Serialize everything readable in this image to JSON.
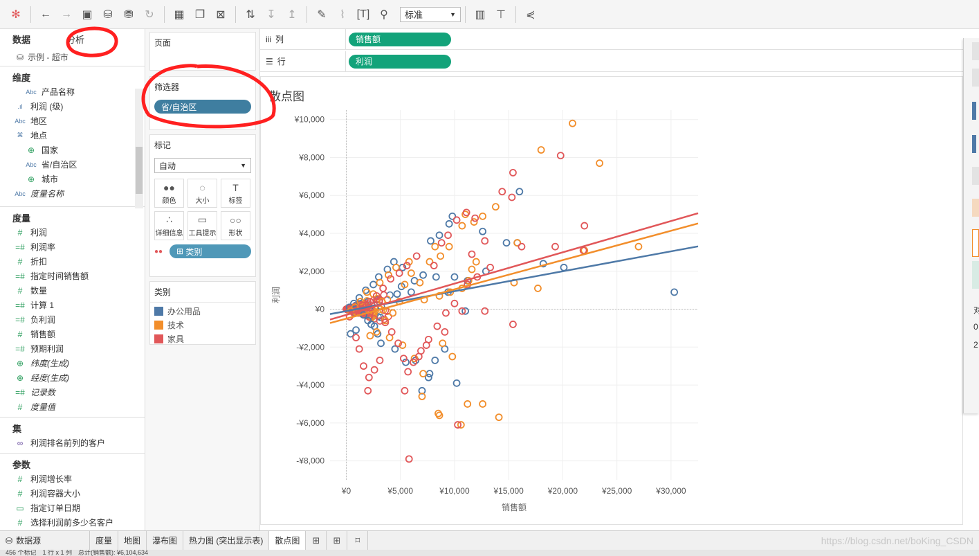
{
  "toolbar": {
    "icons": [
      "tableau-logo-icon",
      "undo-icon",
      "redo-icon",
      "save-icon",
      "new-datasource-icon",
      "pause-icon",
      "refresh-icon",
      "new-worksheet-icon",
      "duplicate-icon",
      "clear-icon",
      "swap-icon",
      "sort-asc-icon",
      "sort-desc-icon",
      "highlight-icon",
      "group-icon",
      "label-icon",
      "pin-icon",
      "show-me-icon",
      "presentation-icon",
      "share-icon"
    ],
    "fit_select": "标准"
  },
  "left_pane": {
    "tabs": [
      "数据",
      "分析"
    ],
    "datasource": "示例 - 超市",
    "dimensions_header": "维度",
    "dimensions": [
      {
        "type": "Abc",
        "label": "产品名称",
        "indent": 2
      },
      {
        "type": "bin",
        "label": "利润 (级)",
        "indent": 1
      },
      {
        "type": "Abc",
        "label": "地区",
        "indent": 1
      },
      {
        "type": "hier",
        "label": "地点",
        "indent": 1
      },
      {
        "type": "geo",
        "label": "国家",
        "indent": 2
      },
      {
        "type": "Abc",
        "label": "省/自治区",
        "indent": 2
      },
      {
        "type": "geo",
        "label": "城市",
        "indent": 2
      },
      {
        "type": "Abc",
        "label": "度量名称",
        "indent": 1,
        "italic": true
      }
    ],
    "measures_header": "度量",
    "measures": [
      {
        "type": "#",
        "label": "利润"
      },
      {
        "type": "=#",
        "label": "利润率"
      },
      {
        "type": "#",
        "label": "折扣"
      },
      {
        "type": "=#",
        "label": "指定时间销售额"
      },
      {
        "type": "#",
        "label": "数量"
      },
      {
        "type": "=#",
        "label": "计算 1"
      },
      {
        "type": "=#",
        "label": "负利润"
      },
      {
        "type": "#",
        "label": "销售额"
      },
      {
        "type": "=#",
        "label": "预期利润"
      },
      {
        "type": "geo",
        "label": "纬度(生成)",
        "italic": true
      },
      {
        "type": "geo",
        "label": "经度(生成)",
        "italic": true
      },
      {
        "type": "=#",
        "label": "记录数",
        "italic": true
      },
      {
        "type": "#",
        "label": "度量值",
        "italic": true
      }
    ],
    "sets_header": "集",
    "sets": [
      {
        "label": "利润排名前列的客户"
      }
    ],
    "params_header": "参数",
    "params": [
      {
        "type": "#",
        "label": "利润增长率"
      },
      {
        "type": "#",
        "label": "利润容器大小"
      },
      {
        "type": "cal",
        "label": "指定订单日期"
      },
      {
        "type": "#",
        "label": "选择利润前多少名客户"
      }
    ]
  },
  "mid_pane": {
    "pages_title": "页面",
    "filters_title": "筛选器",
    "filter_pill": "省/自治区",
    "marks_title": "标记",
    "mark_type": "自动",
    "mark_buttons": [
      {
        "icon": "color-icon",
        "label": "颜色"
      },
      {
        "icon": "size-icon",
        "label": "大小"
      },
      {
        "icon": "label-icon",
        "label": "标签"
      },
      {
        "icon": "detail-icon",
        "label": "详细信息"
      },
      {
        "icon": "tooltip-icon",
        "label": "工具提示"
      },
      {
        "icon": "shape-icon",
        "label": "形状"
      }
    ],
    "color_pill": "类别",
    "legend_title": "类别",
    "legend": [
      {
        "label": "办公用品",
        "color": "#4e79a7"
      },
      {
        "label": "技术",
        "color": "#f28e2b"
      },
      {
        "label": "家具",
        "color": "#e15759"
      }
    ]
  },
  "shelves": {
    "columns_label": "列",
    "columns_pill": "销售额",
    "rows_label": "行",
    "rows_pill": "利润"
  },
  "chart_data": {
    "type": "scatter",
    "title": "散点图",
    "xlabel": "销售额",
    "ylabel": "利润",
    "xlim": [
      -1500,
      32500
    ],
    "ylim": [
      -9000,
      10500
    ],
    "x_ticks": [
      0,
      5000,
      10000,
      15000,
      20000,
      25000,
      30000
    ],
    "x_tick_labels": [
      "¥0",
      "¥5,000",
      "¥10,000",
      "¥15,000",
      "¥20,000",
      "¥25,000",
      "¥30,000"
    ],
    "y_ticks": [
      10000,
      8000,
      6000,
      4000,
      2000,
      0,
      -2000,
      -4000,
      -6000,
      -8000
    ],
    "y_tick_labels": [
      "¥10,000",
      "¥8,000",
      "¥6,000",
      "¥4,000",
      "¥2,000",
      "¥0",
      "-¥2,000",
      "-¥4,000",
      "-¥6,000",
      "-¥8,000"
    ],
    "series": [
      {
        "name": "办公用品",
        "color": "#4e79a7",
        "trend": {
          "intercept": -100,
          "slope": 0.105
        },
        "points": [
          [
            30300,
            900
          ],
          [
            20100,
            2200
          ],
          [
            18200,
            2400
          ],
          [
            16000,
            6200
          ],
          [
            15800,
            3500
          ],
          [
            14800,
            3500
          ],
          [
            12600,
            4100
          ],
          [
            12900,
            2000
          ],
          [
            11200,
            1500
          ],
          [
            10000,
            1700
          ],
          [
            9800,
            4900
          ],
          [
            9500,
            4500
          ],
          [
            8600,
            3900
          ],
          [
            7800,
            3600
          ],
          [
            8300,
            1700
          ],
          [
            9400,
            900
          ],
          [
            7100,
            1800
          ],
          [
            6300,
            1500
          ],
          [
            11000,
            -100
          ],
          [
            10200,
            -3900
          ],
          [
            9100,
            -2100
          ],
          [
            8200,
            -2700
          ],
          [
            7700,
            -3400
          ],
          [
            7600,
            -3600
          ],
          [
            7000,
            -4300
          ],
          [
            6400,
            -2700
          ],
          [
            5500,
            -2800
          ],
          [
            4500,
            -2100
          ],
          [
            3200,
            -1800
          ],
          [
            2900,
            -1300
          ],
          [
            2600,
            -900
          ],
          [
            2300,
            -800
          ],
          [
            2000,
            -600
          ],
          [
            1600,
            -300
          ],
          [
            900,
            -1100
          ],
          [
            400,
            -1300
          ],
          [
            5200,
            2200
          ],
          [
            4400,
            2500
          ],
          [
            3800,
            2100
          ],
          [
            3000,
            1700
          ],
          [
            2500,
            1300
          ],
          [
            1800,
            1000
          ],
          [
            1200,
            600
          ],
          [
            700,
            300
          ],
          [
            300,
            100
          ],
          [
            6000,
            900
          ],
          [
            5100,
            1200
          ],
          [
            4700,
            800
          ]
        ]
      },
      {
        "name": "技术",
        "color": "#f28e2b",
        "trend": {
          "intercept": -500,
          "slope": 0.1545
        },
        "points": [
          [
            20900,
            9800
          ],
          [
            18000,
            8400
          ],
          [
            23400,
            7700
          ],
          [
            27000,
            3300
          ],
          [
            22000,
            3100
          ],
          [
            15500,
            1400
          ],
          [
            17700,
            1100
          ],
          [
            13800,
            5400
          ],
          [
            15800,
            3500
          ],
          [
            12600,
            4900
          ],
          [
            11800,
            4600
          ],
          [
            11000,
            5000
          ],
          [
            10700,
            4400
          ],
          [
            9500,
            3300
          ],
          [
            8700,
            2800
          ],
          [
            8200,
            3300
          ],
          [
            7700,
            2500
          ],
          [
            12000,
            2500
          ],
          [
            11600,
            2100
          ],
          [
            11300,
            1500
          ],
          [
            10700,
            1100
          ],
          [
            9600,
            900
          ],
          [
            8600,
            700
          ],
          [
            7200,
            500
          ],
          [
            6800,
            1400
          ],
          [
            6000,
            1900
          ],
          [
            5400,
            1300
          ],
          [
            4900,
            400
          ],
          [
            4300,
            -200
          ],
          [
            3600,
            -600
          ],
          [
            2800,
            -1200
          ],
          [
            2200,
            -1400
          ],
          [
            5200,
            -1900
          ],
          [
            6300,
            -2600
          ],
          [
            7100,
            -3400
          ],
          [
            7000,
            -4600
          ],
          [
            8500,
            -5500
          ],
          [
            8600,
            -5600
          ],
          [
            11200,
            -5000
          ],
          [
            12600,
            -5000
          ],
          [
            14100,
            -5700
          ],
          [
            10600,
            -6100
          ],
          [
            4000,
            -1500
          ],
          [
            3300,
            400
          ],
          [
            2500,
            800
          ],
          [
            1900,
            900
          ],
          [
            1300,
            400
          ],
          [
            800,
            100
          ],
          [
            400,
            -100
          ],
          [
            5800,
            2500
          ],
          [
            4600,
            2200
          ],
          [
            3900,
            1800
          ],
          [
            3100,
            1400
          ],
          [
            8900,
            -1800
          ],
          [
            9800,
            -2500
          ]
        ]
      },
      {
        "name": "家具",
        "color": "#e15759",
        "trend": {
          "intercept": -300,
          "slope": 0.165
        },
        "points": [
          [
            15400,
            7200
          ],
          [
            19800,
            8100
          ],
          [
            14400,
            6200
          ],
          [
            15300,
            5900
          ],
          [
            16200,
            3300
          ],
          [
            19300,
            3300
          ],
          [
            22000,
            4400
          ],
          [
            21900,
            3100
          ],
          [
            15400,
            -800
          ],
          [
            12800,
            -100
          ],
          [
            13300,
            2200
          ],
          [
            12800,
            3600
          ],
          [
            11900,
            4800
          ],
          [
            11100,
            5100
          ],
          [
            10200,
            4700
          ],
          [
            9400,
            3900
          ],
          [
            8800,
            3500
          ],
          [
            8100,
            2300
          ],
          [
            11600,
            2900
          ],
          [
            12100,
            1700
          ],
          [
            11200,
            1300
          ],
          [
            10000,
            300
          ],
          [
            9200,
            -200
          ],
          [
            8400,
            -900
          ],
          [
            7600,
            -1600
          ],
          [
            6900,
            -2200
          ],
          [
            6200,
            -2800
          ],
          [
            5700,
            -3300
          ],
          [
            5300,
            -2600
          ],
          [
            4800,
            -1800
          ],
          [
            4200,
            -1200
          ],
          [
            3600,
            -700
          ],
          [
            3100,
            -2700
          ],
          [
            2600,
            -3200
          ],
          [
            2100,
            -3600
          ],
          [
            2000,
            -4300
          ],
          [
            1600,
            -3000
          ],
          [
            1200,
            -2100
          ],
          [
            900,
            -1500
          ],
          [
            5400,
            -4300
          ],
          [
            5800,
            -7900
          ],
          [
            10300,
            -6100
          ],
          [
            6700,
            -2500
          ],
          [
            7400,
            -1900
          ],
          [
            9100,
            -1200
          ],
          [
            10700,
            -100
          ],
          [
            4100,
            1600
          ],
          [
            3400,
            1100
          ],
          [
            2800,
            700
          ],
          [
            2200,
            400
          ],
          [
            1500,
            200
          ],
          [
            700,
            -200
          ],
          [
            300,
            -400
          ],
          [
            6500,
            2800
          ],
          [
            5600,
            2300
          ],
          [
            4900,
            1900
          ]
        ]
      }
    ]
  },
  "right_strip": {
    "texts": [
      "对",
      "0",
      "2"
    ]
  },
  "bottom_tabs": {
    "datasource": "数据源",
    "sheets": [
      "度量",
      "地图",
      "瀑布图",
      "热力图 (突出显示表)",
      "散点图"
    ],
    "active": "散点图"
  },
  "watermark": "https://blog.csdn.net/boKing_CSDN",
  "status": "456 个标记　1 行 x 1 列　总计(销售额): ¥6,104,634"
}
